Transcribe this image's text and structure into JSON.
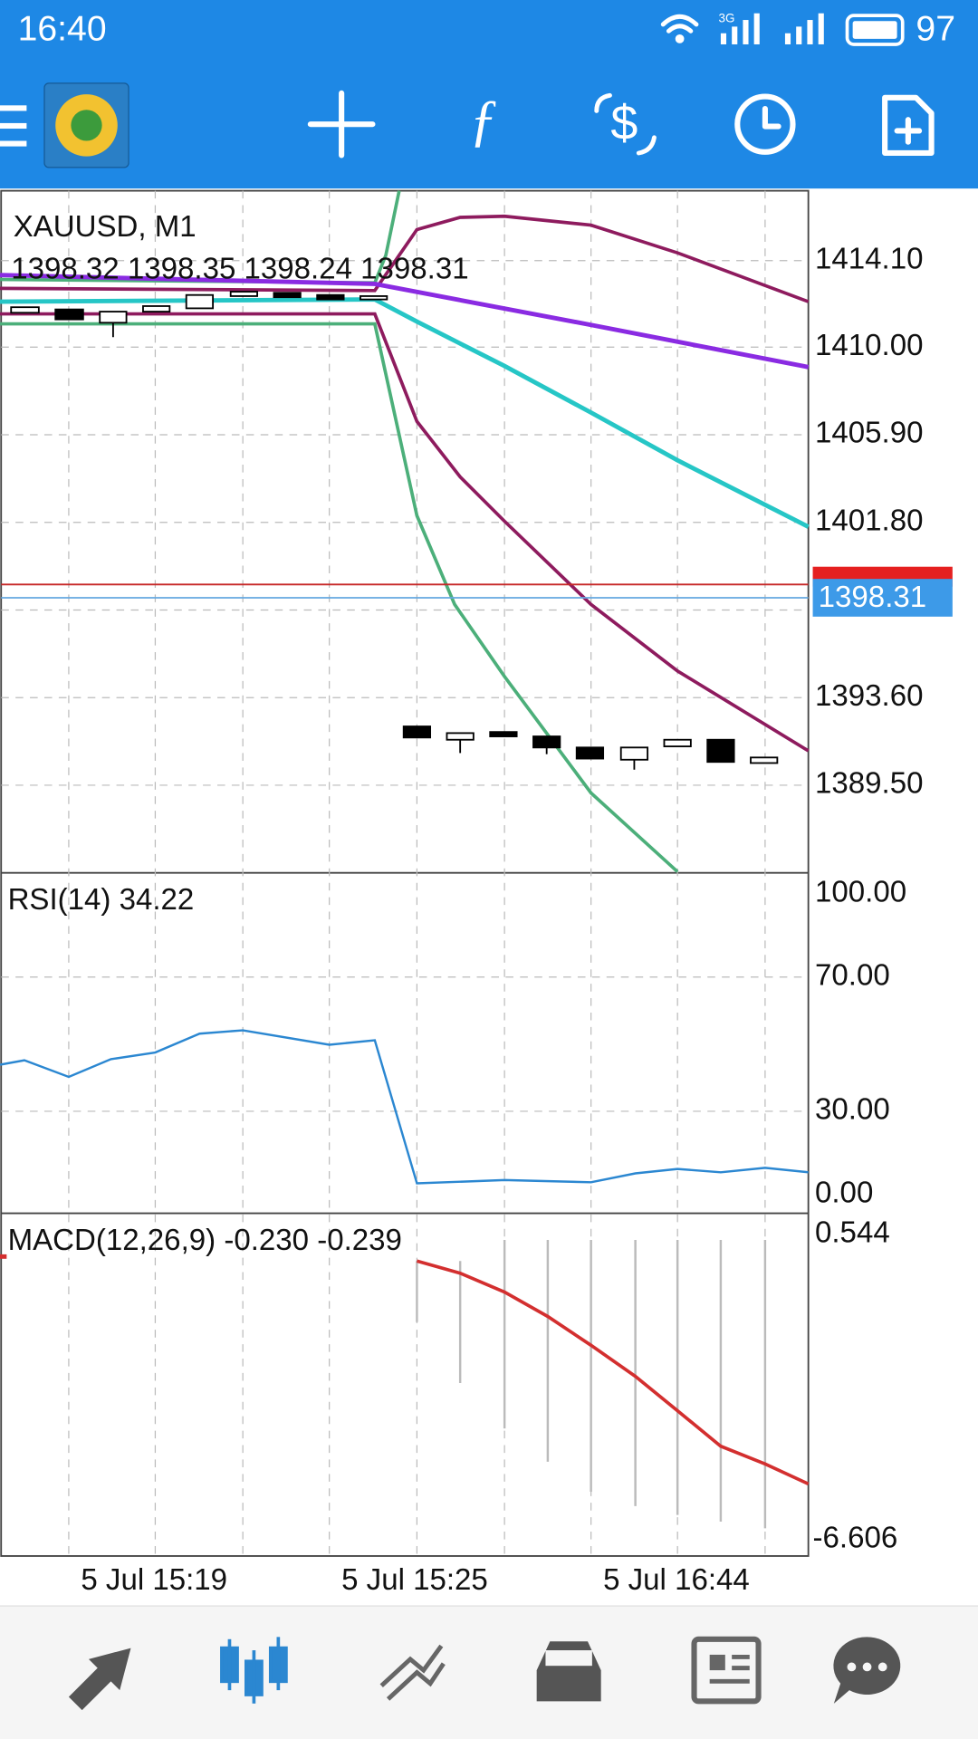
{
  "status_bar": {
    "time": "16:40",
    "network": "3G",
    "battery": "97"
  },
  "chart": {
    "symbol": "XAUUSD, M1",
    "ohlc": "1398.32 1398.35 1398.24 1398.31",
    "price_labels": [
      "1414.10",
      "1410.00",
      "1405.90",
      "1401.80",
      "1393.60",
      "1389.50"
    ],
    "current_price": "1398.31",
    "rsi": {
      "label": "RSI(14) 34.22",
      "levels": [
        "100.00",
        "70.00",
        "30.00",
        "0.00"
      ]
    },
    "macd": {
      "label": "MACD(12,26,9) -0.230 -0.239",
      "levels": [
        "0.544",
        "-6.606"
      ]
    },
    "time_labels": [
      "5 Jul 15:19",
      "5 Jul 15:25",
      "5 Jul 16:44"
    ]
  }
}
